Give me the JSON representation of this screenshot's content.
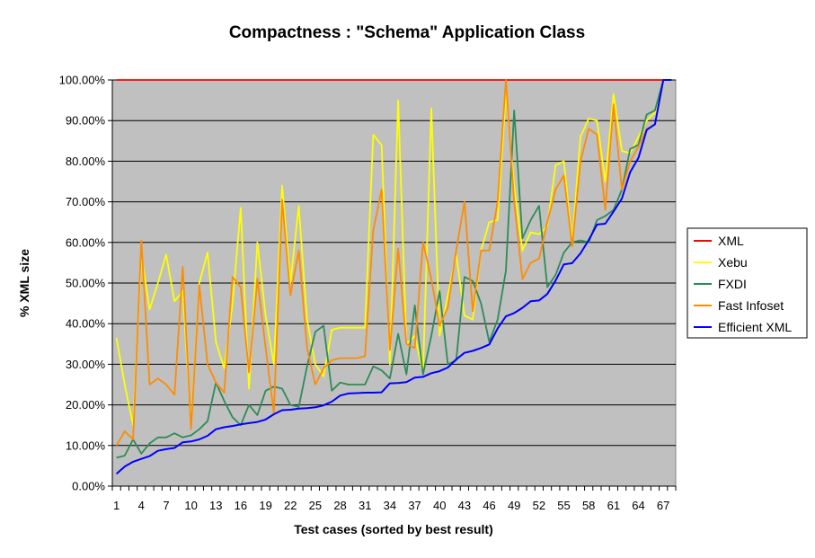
{
  "chart_data": {
    "type": "line",
    "title": "Compactness : \"Schema\" Application Class",
    "xlabel": "Test cases (sorted by best result)",
    "ylabel": "% XML size",
    "x": [
      1,
      2,
      3,
      4,
      5,
      6,
      7,
      8,
      9,
      10,
      11,
      12,
      13,
      14,
      15,
      16,
      17,
      18,
      19,
      20,
      21,
      22,
      23,
      24,
      25,
      26,
      27,
      28,
      29,
      30,
      31,
      32,
      33,
      34,
      35,
      36,
      37,
      38,
      39,
      40,
      41,
      42,
      43,
      44,
      45,
      46,
      47,
      48,
      49,
      50,
      51,
      52,
      53,
      54,
      55,
      56,
      57,
      58,
      59,
      60,
      61,
      62,
      63,
      64,
      65,
      66,
      67,
      68
    ],
    "x_tick_labels": [
      "1",
      "4",
      "7",
      "10",
      "13",
      "16",
      "19",
      "22",
      "25",
      "28",
      "31",
      "34",
      "37",
      "40",
      "43",
      "46",
      "49",
      "52",
      "55",
      "58",
      "61",
      "64",
      "67"
    ],
    "y_tick_labels": [
      "0.00%",
      "10.00%",
      "20.00%",
      "30.00%",
      "40.00%",
      "50.00%",
      "60.00%",
      "70.00%",
      "80.00%",
      "90.00%",
      "100.00%"
    ],
    "ylim": [
      0,
      100
    ],
    "y_unit": "%",
    "grid": true,
    "plot_background": "#c0c0c0",
    "legend_position": "right",
    "series": [
      {
        "name": "XML",
        "color": "#ff0000",
        "values": [
          100,
          100,
          100,
          100,
          100,
          100,
          100,
          100,
          100,
          100,
          100,
          100,
          100,
          100,
          100,
          100,
          100,
          100,
          100,
          100,
          100,
          100,
          100,
          100,
          100,
          100,
          100,
          100,
          100,
          100,
          100,
          100,
          100,
          100,
          100,
          100,
          100,
          100,
          100,
          100,
          100,
          100,
          100,
          100,
          100,
          100,
          100,
          100,
          100,
          100,
          100,
          100,
          100,
          100,
          100,
          100,
          100,
          100,
          100,
          100,
          100,
          100,
          100,
          100,
          100,
          100,
          100,
          100
        ]
      },
      {
        "name": "Xebu",
        "color": "#ffff00",
        "values": [
          36.5,
          25,
          15,
          57,
          43.5,
          50,
          57,
          45.5,
          48,
          15,
          50,
          57.5,
          35.5,
          29,
          45,
          68.5,
          24,
          60,
          42,
          30,
          74,
          50,
          69,
          41,
          30,
          27,
          38.5,
          39,
          39,
          39,
          39,
          86.5,
          84,
          30,
          95,
          35,
          37,
          28,
          93,
          37,
          47,
          57,
          42,
          41,
          58,
          65,
          65.5,
          97,
          74,
          58,
          62.5,
          62,
          64,
          79,
          80,
          60,
          86,
          90.5,
          90,
          75,
          96.5,
          82.5,
          82,
          86,
          90,
          92,
          100,
          100
        ]
      },
      {
        "name": "FXDI",
        "color": "#2e8b57",
        "values": [
          7,
          7.5,
          11.5,
          8,
          10.5,
          12,
          12,
          13,
          12,
          12.5,
          14,
          16,
          25.5,
          21,
          17,
          15,
          20,
          17.5,
          23.5,
          24.5,
          24,
          20,
          19.5,
          29.5,
          38,
          39.5,
          23.5,
          25.5,
          25,
          25,
          25,
          29.5,
          28.5,
          26.5,
          37.5,
          27.5,
          44.5,
          27.5,
          37,
          48,
          30,
          31,
          51.5,
          50.5,
          45,
          35.5,
          41,
          53,
          92.5,
          61,
          65.5,
          69,
          49,
          52,
          57.5,
          60,
          60.5,
          60,
          65.5,
          66.5,
          68,
          73,
          83,
          84,
          91.5,
          92.5,
          100,
          100
        ]
      },
      {
        "name": "Fast Infoset",
        "color": "#ff8c00",
        "values": [
          10,
          13.5,
          11.5,
          60.5,
          25,
          26.5,
          25,
          22.5,
          54,
          14,
          49.5,
          30,
          25.5,
          23,
          51.5,
          49,
          28,
          51,
          34,
          18,
          70.5,
          47,
          58,
          34,
          25,
          29,
          31,
          31.5,
          31.5,
          31.5,
          32,
          63,
          73,
          33.5,
          58.5,
          35,
          34,
          60,
          51,
          39.5,
          44,
          58,
          70,
          43,
          58,
          58,
          70,
          100,
          70,
          51,
          55,
          56,
          65,
          73,
          76.5,
          59,
          80,
          88,
          86.5,
          68,
          94,
          73,
          80,
          83.5,
          88,
          89,
          100,
          100
        ]
      },
      {
        "name": "Efficient XML",
        "color": "#0000ff",
        "values": [
          3,
          4.8,
          6,
          6.7,
          7.4,
          8.7,
          9.1,
          9.4,
          10.8,
          11,
          11.5,
          12.4,
          14,
          14.5,
          14.8,
          15.2,
          15.5,
          15.8,
          16.4,
          17.7,
          18.7,
          18.8,
          19.1,
          19.2,
          19.4,
          19.9,
          20.8,
          22.3,
          22.8,
          22.9,
          23,
          23,
          23.1,
          25.3,
          25.4,
          25.6,
          26.7,
          26.9,
          27.8,
          28.3,
          29.2,
          31.2,
          32.8,
          33.3,
          34,
          34.9,
          38.8,
          41.8,
          42.6,
          43.9,
          45.5,
          45.7,
          47.3,
          50.6,
          54.6,
          54.9,
          57.3,
          60.6,
          64.4,
          64.6,
          67.6,
          70.8,
          77.3,
          80.8,
          87.7,
          89.1,
          100,
          100
        ]
      }
    ]
  }
}
